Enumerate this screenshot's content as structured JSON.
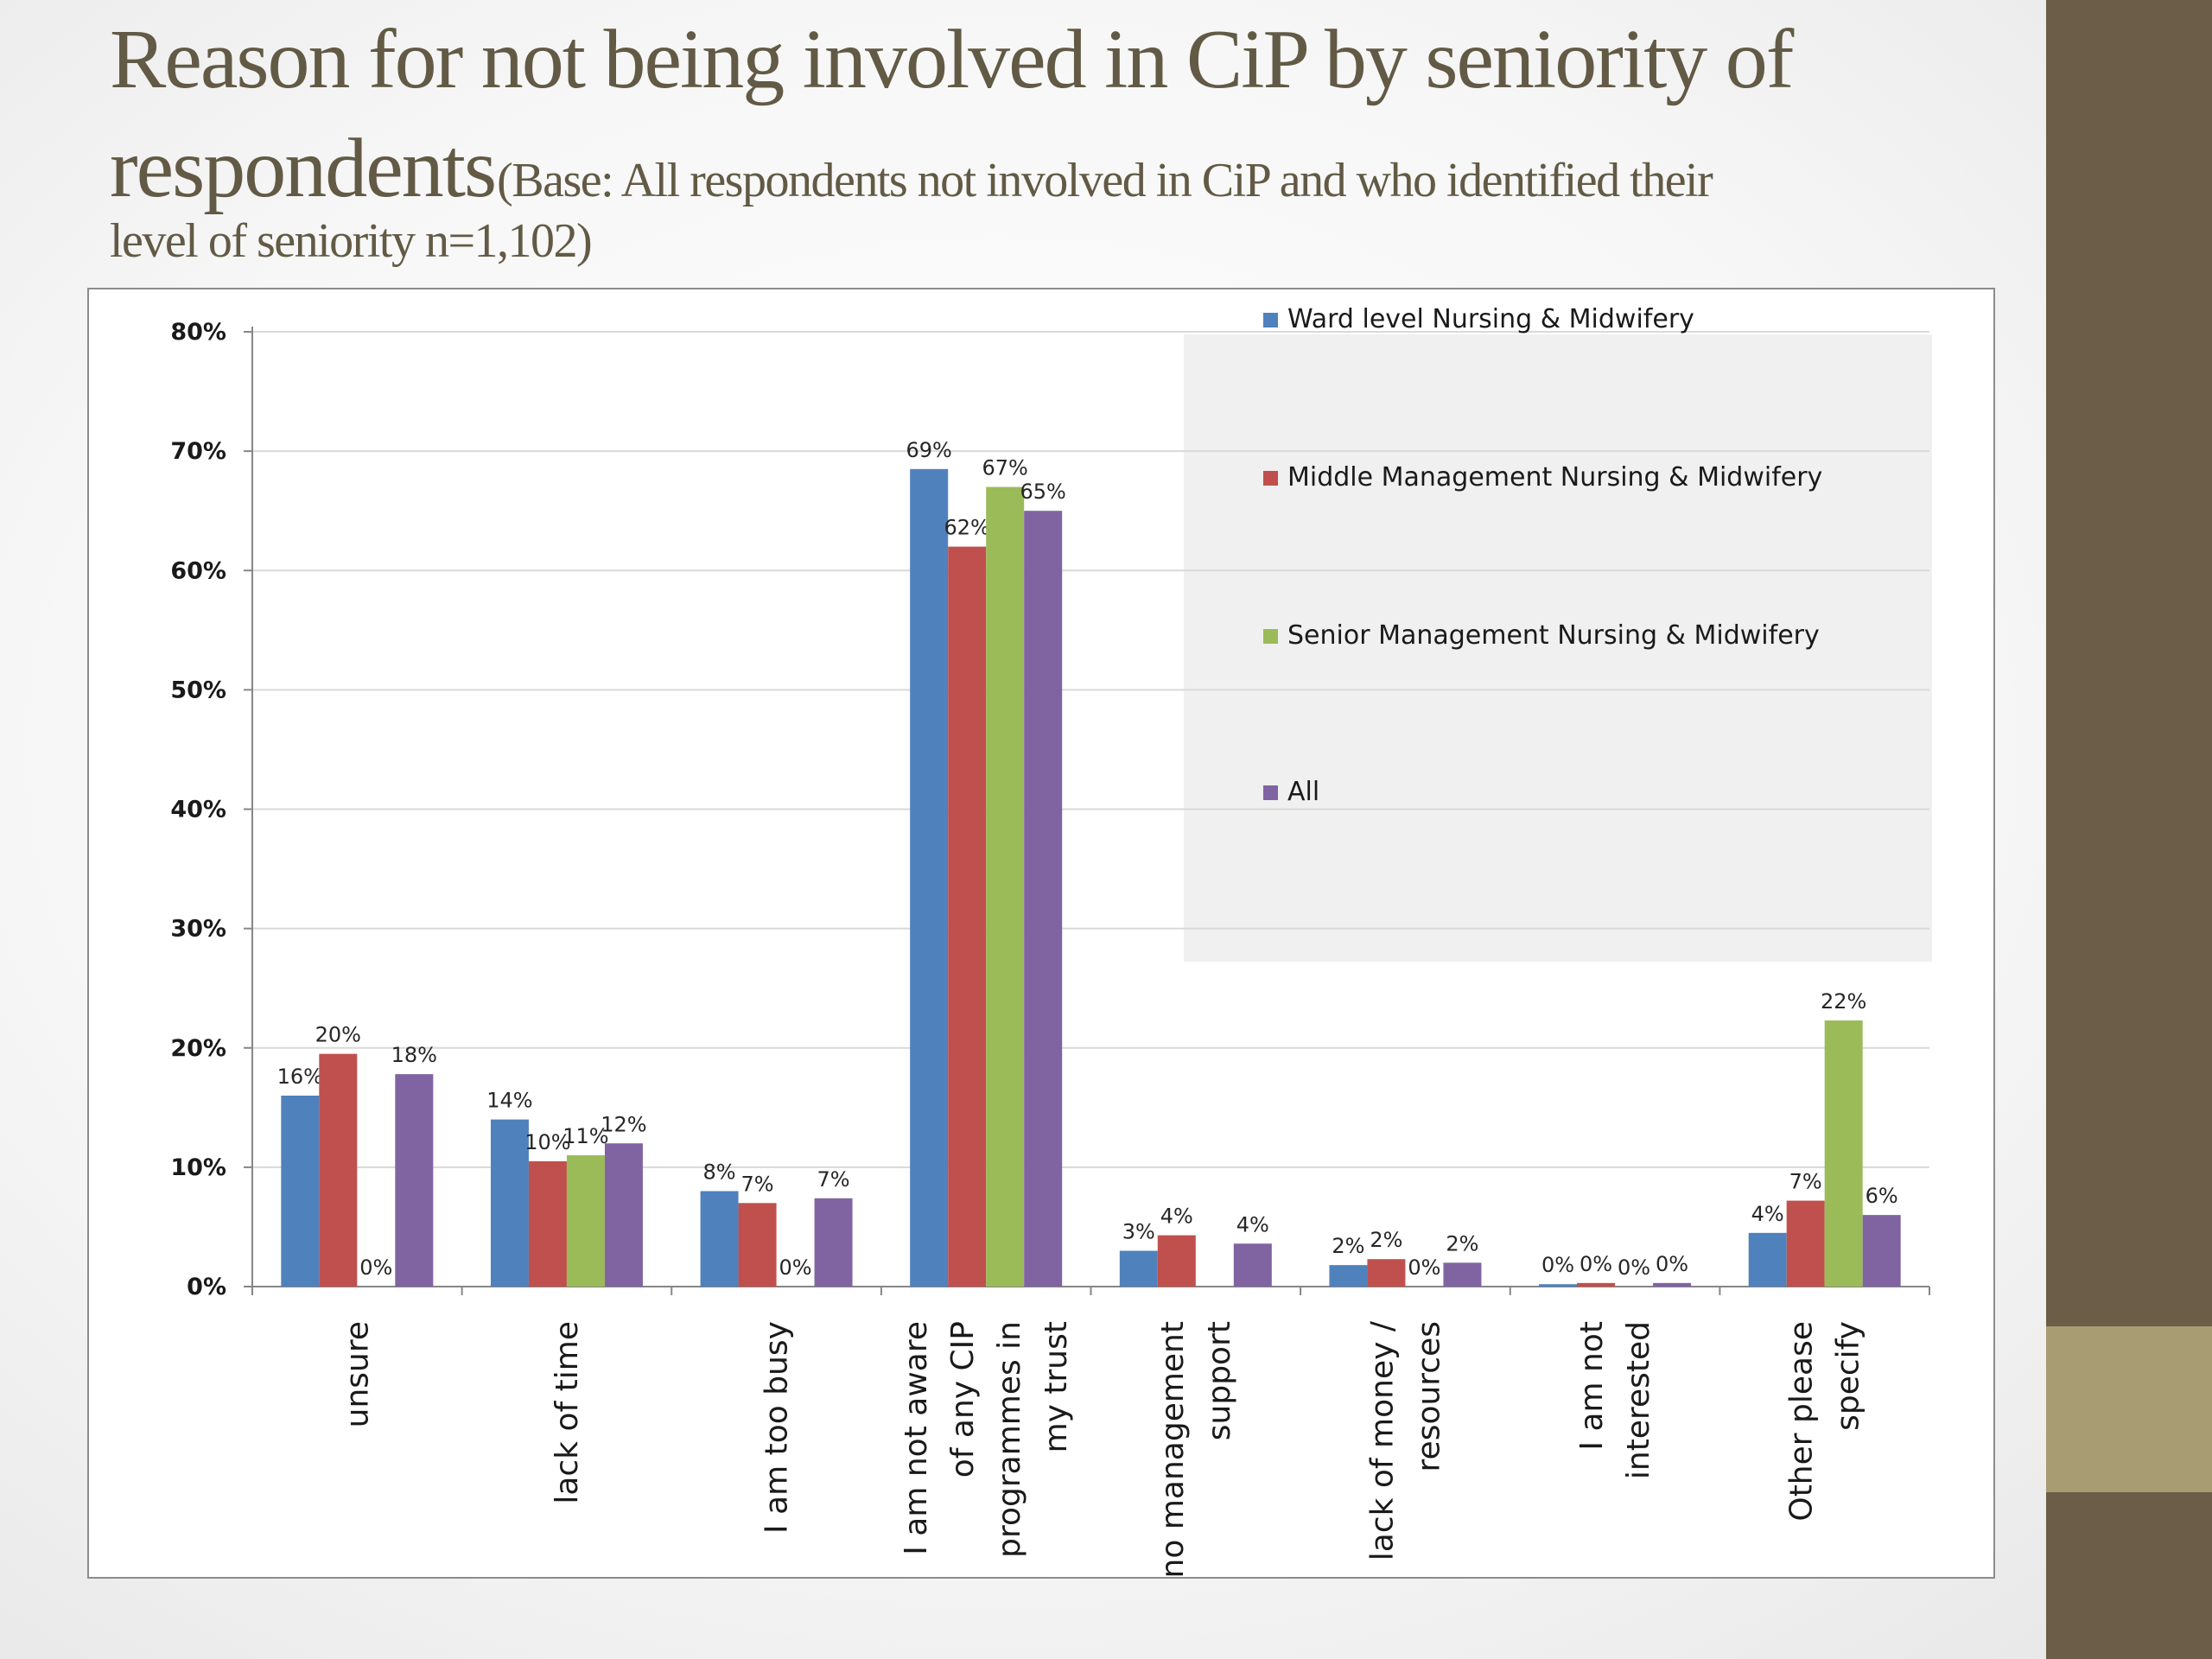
{
  "title": {
    "line1": "Reason for not being involved in CiP by seniority  of",
    "line2_main": "respondents",
    "base_part1": "(Base:  All respondents  not involved in   CiP  and who  identified their",
    "base_part2": "level of  seniority n=1,102)"
  },
  "colors": {
    "ward": "#4f81bd",
    "middle": "#c0504d",
    "senior": "#9bbb59",
    "all": "#8064a2",
    "band": "#6b5d47",
    "accent": "#a89c72",
    "title": "#625a45"
  },
  "chart_data": {
    "type": "bar",
    "ylim": [
      0,
      80
    ],
    "y_ticks": [
      "0%",
      "10%",
      "20%",
      "30%",
      "40%",
      "50%",
      "60%",
      "70%",
      "80%"
    ],
    "grid": true,
    "legend_position": "top-right",
    "categories": [
      [
        "unsure"
      ],
      [
        "lack of time"
      ],
      [
        "I am too busy"
      ],
      [
        "I am not aware",
        "of any CIP",
        "programmes in",
        "my trust"
      ],
      [
        "no management",
        "support"
      ],
      [
        "lack of  money /",
        "resources"
      ],
      [
        "I am not",
        "interested"
      ],
      [
        "Other please",
        "specify"
      ]
    ],
    "series": [
      {
        "name": "Ward level  Nursing & Midwifery",
        "values": [
          16,
          14,
          8,
          68.5,
          3,
          1.8,
          0.2,
          4.5
        ],
        "labels": [
          "16%",
          "14%",
          "8%",
          "69%",
          "3%",
          "2%",
          "0%",
          "4%"
        ]
      },
      {
        "name": "Middle Management Nursing & Midwifery",
        "values": [
          19.5,
          10.5,
          7,
          62,
          4.3,
          2.3,
          0.3,
          7.2
        ],
        "labels": [
          "20%",
          "10%",
          "7%",
          "62%",
          "4%",
          "2%",
          "0%",
          "7%"
        ]
      },
      {
        "name": "Senior Management Nursing & Midwifery",
        "values": [
          0,
          11,
          0,
          67,
          0,
          0,
          0,
          22.3
        ],
        "labels": [
          "0%",
          "11%",
          "0%",
          "67%",
          "",
          "0%",
          "0%",
          "22%"
        ]
      },
      {
        "name": "All",
        "values": [
          17.8,
          12,
          7.4,
          65,
          3.6,
          2,
          0.3,
          6
        ],
        "labels": [
          "18%",
          "12%",
          "7%",
          "65%",
          "4%",
          "2%",
          "0%",
          "6%"
        ]
      }
    ]
  }
}
